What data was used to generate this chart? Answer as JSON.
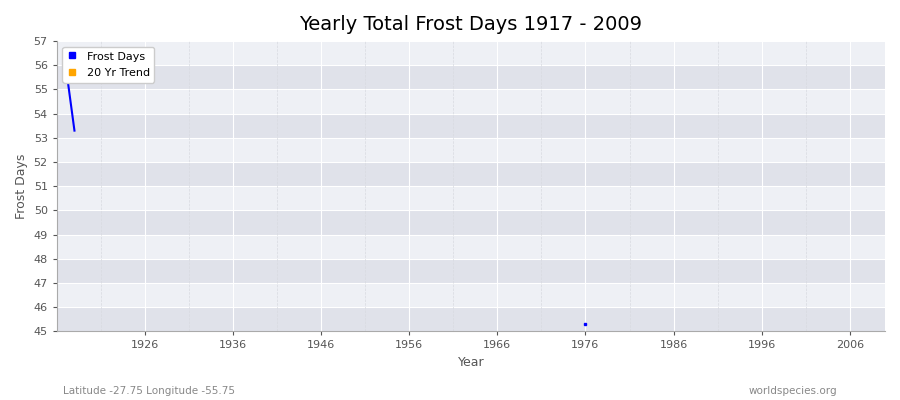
{
  "title": "Yearly Total Frost Days 1917 - 2009",
  "xlabel": "Year",
  "ylabel": "Frost Days",
  "xlim": [
    1916,
    2010
  ],
  "ylim": [
    45,
    57
  ],
  "yticks": [
    45,
    46,
    47,
    48,
    49,
    50,
    51,
    52,
    53,
    54,
    55,
    56,
    57
  ],
  "xticks": [
    1926,
    1936,
    1946,
    1956,
    1966,
    1976,
    1986,
    1996,
    2006
  ],
  "frost_days_years": [
    1917,
    1918,
    1976
  ],
  "frost_days_values": [
    56.0,
    53.3,
    45.3
  ],
  "trend_years": [],
  "trend_values": [],
  "frost_color": "#0000ff",
  "trend_color": "#ffa500",
  "fig_bg_color": "#ffffff",
  "plot_bg_color": "#eef0f5",
  "band_color_dark": "#e0e2ea",
  "band_color_light": "#eef0f5",
  "major_grid_color": "#ffffff",
  "minor_grid_color": "#d8dae0",
  "title_fontsize": 14,
  "axis_label_fontsize": 9,
  "tick_fontsize": 8,
  "tick_color": "#555555",
  "legend_frost_label": "Frost Days",
  "legend_trend_label": "20 Yr Trend",
  "subtitle_left": "Latitude -27.75 Longitude -55.75",
  "subtitle_right": "worldspecies.org",
  "subtitle_fontsize": 7.5
}
